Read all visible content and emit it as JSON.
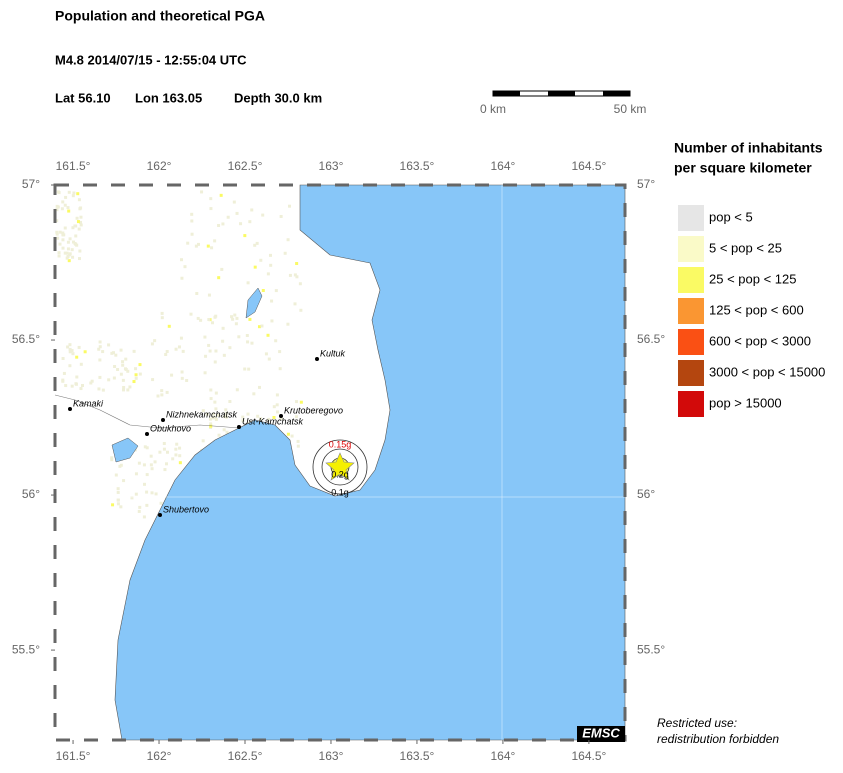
{
  "header": {
    "title": "Population and theoretical PGA",
    "event": "M4.8  2014/07/15 - 12:55:04 UTC",
    "lat": "Lat 56.10",
    "lon": "Lon 163.05",
    "depth": "Depth  30.0 km"
  },
  "scale_bar": {
    "start": "0 km",
    "end": "50 km"
  },
  "map": {
    "lon_ticks": [
      {
        "value": 161.5,
        "label": "161.5°"
      },
      {
        "value": 162,
        "label": "162°"
      },
      {
        "value": 162.5,
        "label": "162.5°"
      },
      {
        "value": 163,
        "label": "163°"
      },
      {
        "value": 163.5,
        "label": "163.5°"
      },
      {
        "value": 164,
        "label": "164°"
      },
      {
        "value": 164.5,
        "label": "164.5°"
      }
    ],
    "lat_ticks": [
      {
        "value": 57,
        "label": "57°"
      },
      {
        "value": 56.5,
        "label": "56.5°"
      },
      {
        "value": 56,
        "label": "56°"
      },
      {
        "value": 55.5,
        "label": "55.5°"
      }
    ],
    "cities": [
      "Kamaki",
      "Nizhnekamchatsk",
      "Obukhovo",
      "Ust-Kamchatsk",
      "Krutoberegovo",
      "Kultuk",
      "Shubertovo"
    ],
    "pga_labels": [
      "0.15g",
      "0.2g",
      "0.1g"
    ],
    "credit": "EMSC"
  },
  "legend": {
    "title": [
      "Number of inhabitants",
      "per square kilometer"
    ],
    "items": [
      {
        "label": "pop < 5",
        "color": "#e6e6e6"
      },
      {
        "label": "5 < pop < 25",
        "color": "#fafac8"
      },
      {
        "label": "25 < pop < 125",
        "color": "#fafa64"
      },
      {
        "label": "125 < pop < 600",
        "color": "#fa9632"
      },
      {
        "label": "600 < pop < 3000",
        "color": "#fa5014"
      },
      {
        "label": "3000 < pop < 15000",
        "color": "#b4460f"
      },
      {
        "label": "pop > 15000",
        "color": "#d20a0a"
      }
    ]
  },
  "footer": [
    "Restricted use:",
    "redistribution forbidden"
  ]
}
